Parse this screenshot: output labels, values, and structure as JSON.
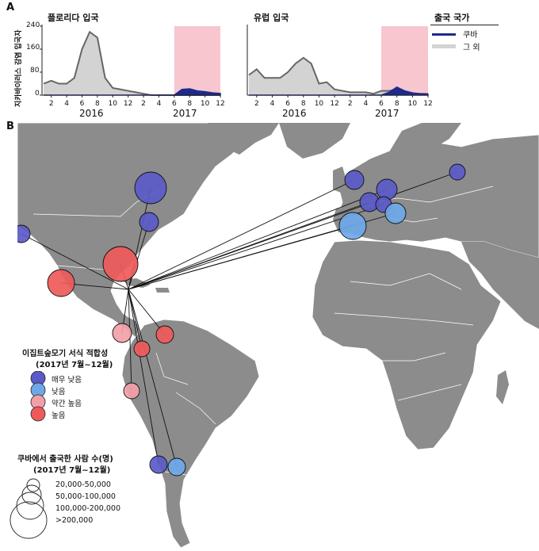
{
  "panels": {
    "a": "A",
    "b": "B"
  },
  "charts": {
    "y_axis_label": "지카바이러스 감염 입국자",
    "florida": {
      "title": "플로리다 입국",
      "ytick_labels": [
        "0",
        "80",
        "160",
        "240"
      ],
      "xtick_labels": [
        "2",
        "4",
        "6",
        "8",
        "10",
        "12",
        "2",
        "4",
        "6",
        "8",
        "10",
        "12"
      ],
      "years": [
        "2016",
        "2017"
      ]
    },
    "europe": {
      "title": "유럽 입국",
      "xtick_labels": [
        "2",
        "4",
        "6",
        "8",
        "10",
        "12",
        "2",
        "4",
        "6",
        "8",
        "10",
        "12"
      ],
      "years": [
        "2016",
        "2017"
      ]
    },
    "legend": {
      "title": "출국 국가",
      "cuba": "쿠바",
      "others": "그 외"
    },
    "colors": {
      "others_fill": "#d3d3d3",
      "others_line": "#666666",
      "cuba": "#1f2a8c",
      "highlight": "#f7c6cf"
    }
  },
  "chart_data": [
    {
      "type": "area",
      "title": "플로리다 입국",
      "ylabel": "지카바이러스 감염 입국자",
      "ylim": [
        0,
        240
      ],
      "x": [
        1,
        2,
        3,
        4,
        5,
        6,
        7,
        8,
        9,
        10,
        11,
        12,
        13,
        14,
        15,
        16,
        17,
        18,
        19,
        20,
        21,
        22,
        23,
        24
      ],
      "series": [
        {
          "name": "그 외",
          "values": [
            40,
            50,
            40,
            40,
            60,
            160,
            220,
            200,
            60,
            25,
            20,
            15,
            10,
            5,
            0,
            0,
            0,
            0,
            0,
            0,
            0,
            0,
            0,
            0
          ]
        },
        {
          "name": "쿠바",
          "values": [
            0,
            0,
            0,
            0,
            0,
            0,
            0,
            0,
            0,
            0,
            0,
            0,
            0,
            0,
            0,
            0,
            0,
            0,
            20,
            22,
            15,
            12,
            8,
            6
          ]
        }
      ],
      "highlight_months": [
        18,
        24
      ]
    },
    {
      "type": "area",
      "title": "유럽 입국",
      "ylim": [
        0,
        240
      ],
      "x": [
        1,
        2,
        3,
        4,
        5,
        6,
        7,
        8,
        9,
        10,
        11,
        12,
        13,
        14,
        15,
        16,
        17,
        18,
        19,
        20,
        21,
        22,
        23,
        24
      ],
      "series": [
        {
          "name": "그 외",
          "values": [
            70,
            90,
            60,
            60,
            60,
            80,
            110,
            130,
            110,
            40,
            45,
            20,
            15,
            10,
            10,
            10,
            5,
            15,
            15,
            20,
            10,
            5,
            5,
            5
          ]
        },
        {
          "name": "쿠바",
          "values": [
            0,
            0,
            0,
            0,
            0,
            0,
            0,
            0,
            0,
            0,
            0,
            0,
            0,
            0,
            0,
            0,
            0,
            0,
            10,
            28,
            15,
            8,
            5,
            3
          ]
        }
      ],
      "highlight_months": [
        18,
        24
      ]
    }
  ],
  "map": {
    "suitability_legend": {
      "title_line1": "이집트숲모기 서식 적합성",
      "title_line2": "(2017년 7월~12월)",
      "items": [
        {
          "label": "매우 낮음",
          "color": "#5a5ac8"
        },
        {
          "label": "낮음",
          "color": "#6ea8e8"
        },
        {
          "label": "약간 높음",
          "color": "#f2a0a8"
        },
        {
          "label": "높음",
          "color": "#ee5a5a"
        }
      ]
    },
    "size_legend": {
      "title_line1": "쿠바에서 출국한 사람 수(명)",
      "title_line2": "(2017년 7월~12월)",
      "items": [
        "20,000-50,000",
        "50,000-100,000",
        "100,000-200,000",
        ">200,000"
      ]
    },
    "colors": {
      "ocean": "#ffffff",
      "land": "#8c8c8c",
      "border": "#ffffff"
    }
  }
}
